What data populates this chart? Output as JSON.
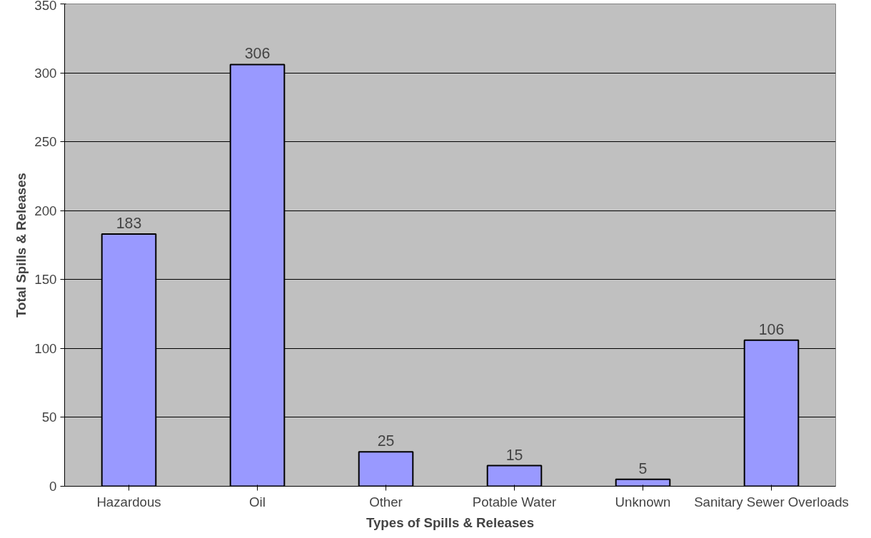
{
  "chart_data": {
    "type": "bar",
    "xlabel": "Types of Spills & Releases",
    "ylabel": "Total Spills & Releases",
    "categories": [
      "Hazardous",
      "Oil",
      "Other",
      "Potable Water",
      "Unknown",
      "Sanitary Sewer Overloads"
    ],
    "values": [
      183,
      306,
      25,
      15,
      5,
      106
    ],
    "color": "#9999ff",
    "ylim": [
      0,
      350
    ],
    "yticks": [
      0,
      50,
      100,
      150,
      200,
      250,
      300,
      350
    ],
    "grid": "y",
    "data_labels": true
  }
}
